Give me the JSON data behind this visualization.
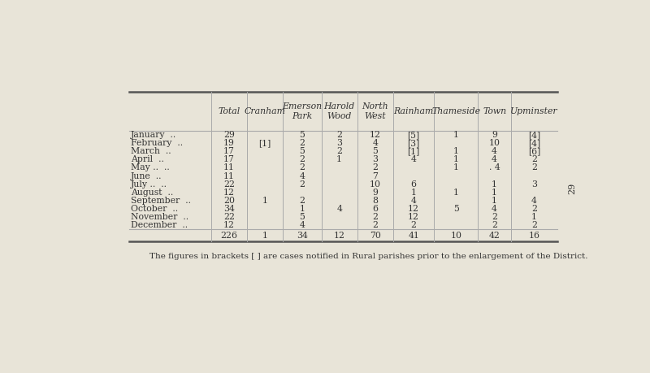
{
  "bg_color": "#e8e4d8",
  "headers": [
    "",
    "Total",
    "Cranham",
    "Emerson\nPark",
    "Harold\nWood",
    "North\nWest",
    "Rainham",
    "Thameside",
    "Town",
    "Upminster"
  ],
  "rows": [
    [
      "January  ..",
      "29",
      "",
      "5",
      "2",
      "12",
      "[5]",
      "1",
      "9",
      "[4]"
    ],
    [
      "February  ..",
      "19",
      "[1]",
      "2",
      "3",
      "4",
      "[3]",
      "",
      "10",
      "[4]"
    ],
    [
      "March  ..",
      "17",
      "",
      "5",
      "2",
      "5",
      "[1]",
      "1",
      "4",
      "[6]"
    ],
    [
      "April  ..",
      "17",
      "",
      "2",
      "1",
      "3",
      "4",
      "1",
      "4",
      "2"
    ],
    [
      "May ..  ..",
      "11",
      "",
      "2",
      "",
      "2",
      "",
      "1",
      ". 4",
      "2"
    ],
    [
      "June  ..",
      "11",
      "",
      "4",
      "",
      "7",
      "",
      "",
      "",
      ""
    ],
    [
      "July ..  ..",
      "22",
      "",
      "2",
      "",
      "10",
      "6",
      "",
      "1",
      "3"
    ],
    [
      "August  ..",
      "12",
      "",
      "",
      "",
      "9",
      "1",
      "1",
      "1",
      ""
    ],
    [
      "September  ..",
      "20",
      "1",
      "2",
      "",
      "8",
      "4",
      "",
      "1",
      "4"
    ],
    [
      "October  ..",
      "34",
      "",
      "1",
      "4",
      "6",
      "12",
      "5",
      "4",
      "2"
    ],
    [
      "November  ..",
      "22",
      "",
      "5",
      "",
      "2",
      "12",
      "",
      "2",
      "1"
    ],
    [
      "December  ..",
      "12",
      "",
      "4",
      "",
      "2",
      "2",
      "",
      "2",
      "2"
    ]
  ],
  "totals": [
    "",
    "226",
    "1",
    "34",
    "12",
    "70",
    "41",
    "10",
    "42",
    "16"
  ],
  "footnote": "The figures in brackets [ ] are cases notified in Rural parishes prior to the enlargement of the District.",
  "page_number": "29",
  "col_widths_rel": [
    1.6,
    0.7,
    0.7,
    0.75,
    0.7,
    0.7,
    0.8,
    0.85,
    0.65,
    0.9
  ],
  "header_fontsize": 7.8,
  "cell_fontsize": 7.8,
  "footnote_fontsize": 7.5,
  "line_color_thick": "#555555",
  "line_color_thin": "#aaaaaa",
  "text_color": "#333333"
}
